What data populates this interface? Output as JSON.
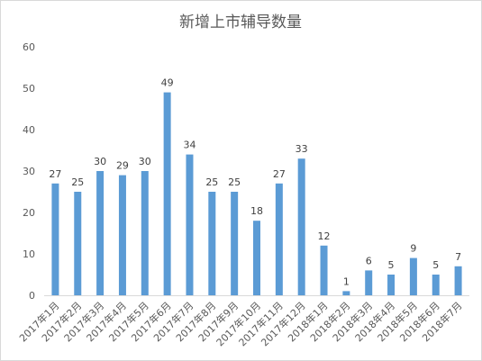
{
  "chart_data": {
    "type": "bar",
    "title": "新增上市辅导数量",
    "xlabel": "",
    "ylabel": "",
    "ylim": [
      0,
      60
    ],
    "yticks": [
      0,
      10,
      20,
      30,
      40,
      50,
      60
    ],
    "grid": false,
    "legend": "none",
    "categories": [
      "2017年1月",
      "2017年2月",
      "2017年3月",
      "2017年4月",
      "2017年5月",
      "2017年6月",
      "2017年7月",
      "2017年8月",
      "2017年9月",
      "2017年10月",
      "2017年11月",
      "2017年12月",
      "2018年1月",
      "2018年2月",
      "2018年3月",
      "2018年4月",
      "2018年5月",
      "2018年6月",
      "2018年7月"
    ],
    "values": [
      27,
      25,
      30,
      29,
      30,
      49,
      34,
      25,
      25,
      18,
      27,
      33,
      12,
      1,
      6,
      5,
      9,
      5,
      7
    ],
    "colors": {
      "bar": "#5b9bd5",
      "axis": "#d9d9d9",
      "text": "#595959"
    }
  }
}
